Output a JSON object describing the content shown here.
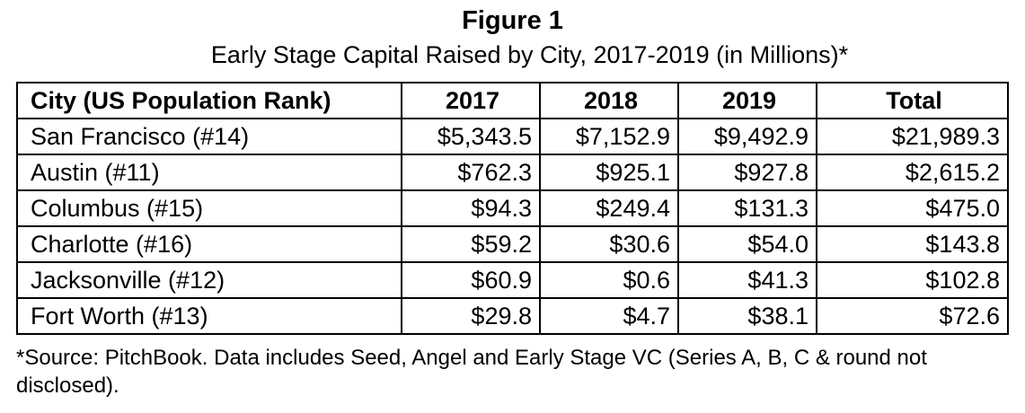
{
  "figure": {
    "title": "Figure 1",
    "subtitle": "Early Stage Capital Raised by City, 2017-2019 (in Millions)*"
  },
  "table": {
    "headers": [
      "City (US Population Rank)",
      "2017",
      "2018",
      "2019",
      "Total"
    ],
    "rows": [
      [
        "San Francisco (#14)",
        "$5,343.5",
        "$7,152.9",
        "$9,492.9",
        "$21,989.3"
      ],
      [
        "Austin (#11)",
        "$762.3",
        "$925.1",
        "$927.8",
        "$2,615.2"
      ],
      [
        "Columbus (#15)",
        "$94.3",
        "$249.4",
        "$131.3",
        "$475.0"
      ],
      [
        "Charlotte (#16)",
        "$59.2",
        "$30.6",
        "$54.0",
        "$143.8"
      ],
      [
        "Jacksonville (#12)",
        "$60.9",
        "$0.6",
        "$41.3",
        "$102.8"
      ],
      [
        "Fort Worth (#13)",
        "$29.8",
        "$4.7",
        "$38.1",
        "$72.6"
      ]
    ]
  },
  "footnote": "*Source: PitchBook. Data includes Seed, Angel and Early Stage VC (Series A, B, C & round not disclosed)."
}
